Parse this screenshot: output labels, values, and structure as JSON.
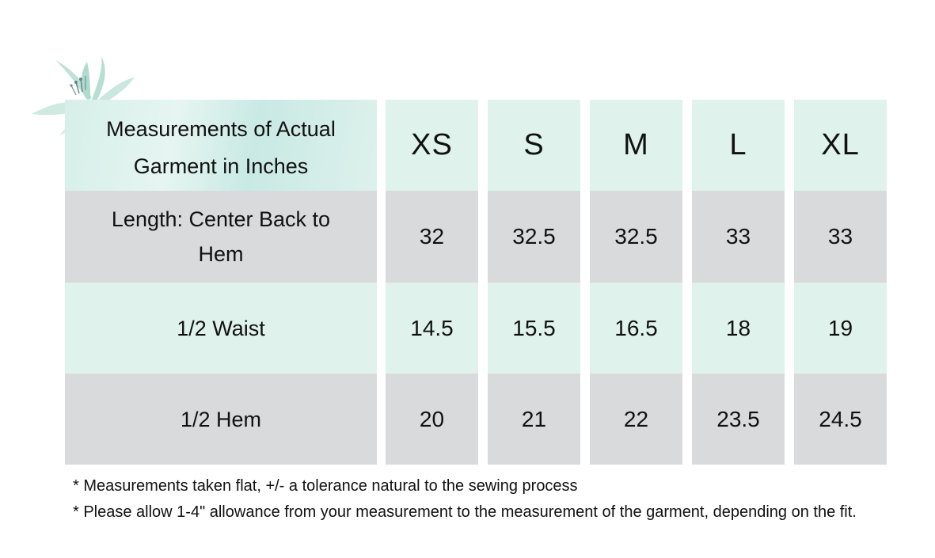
{
  "table": {
    "corner_label": "Measurements of Actual Garment in Inches",
    "sizes": [
      "XS",
      "S",
      "M",
      "L",
      "XL"
    ],
    "rows": [
      {
        "label": "Length: Center Back to Hem",
        "values": [
          "32",
          "32.5",
          "32.5",
          "33",
          "33"
        ]
      },
      {
        "label": "1/2 Waist",
        "values": [
          "14.5",
          "15.5",
          "16.5",
          "18",
          "19"
        ]
      },
      {
        "label": "1/2 Hem",
        "values": [
          "20",
          "21",
          "22",
          "23.5",
          "24.5"
        ]
      }
    ]
  },
  "notes": [
    "* Measurements taken flat, +/- a tolerance natural to the sewing process",
    "* Please allow 1-4\" allowance from your measurement to the measurement of the garment, depending on the fit."
  ],
  "colors": {
    "mint": "#dff2ec",
    "grey": "#d9dadb",
    "text": "#111111"
  },
  "decoration": {
    "icon": "watercolor-leaf-icon"
  }
}
